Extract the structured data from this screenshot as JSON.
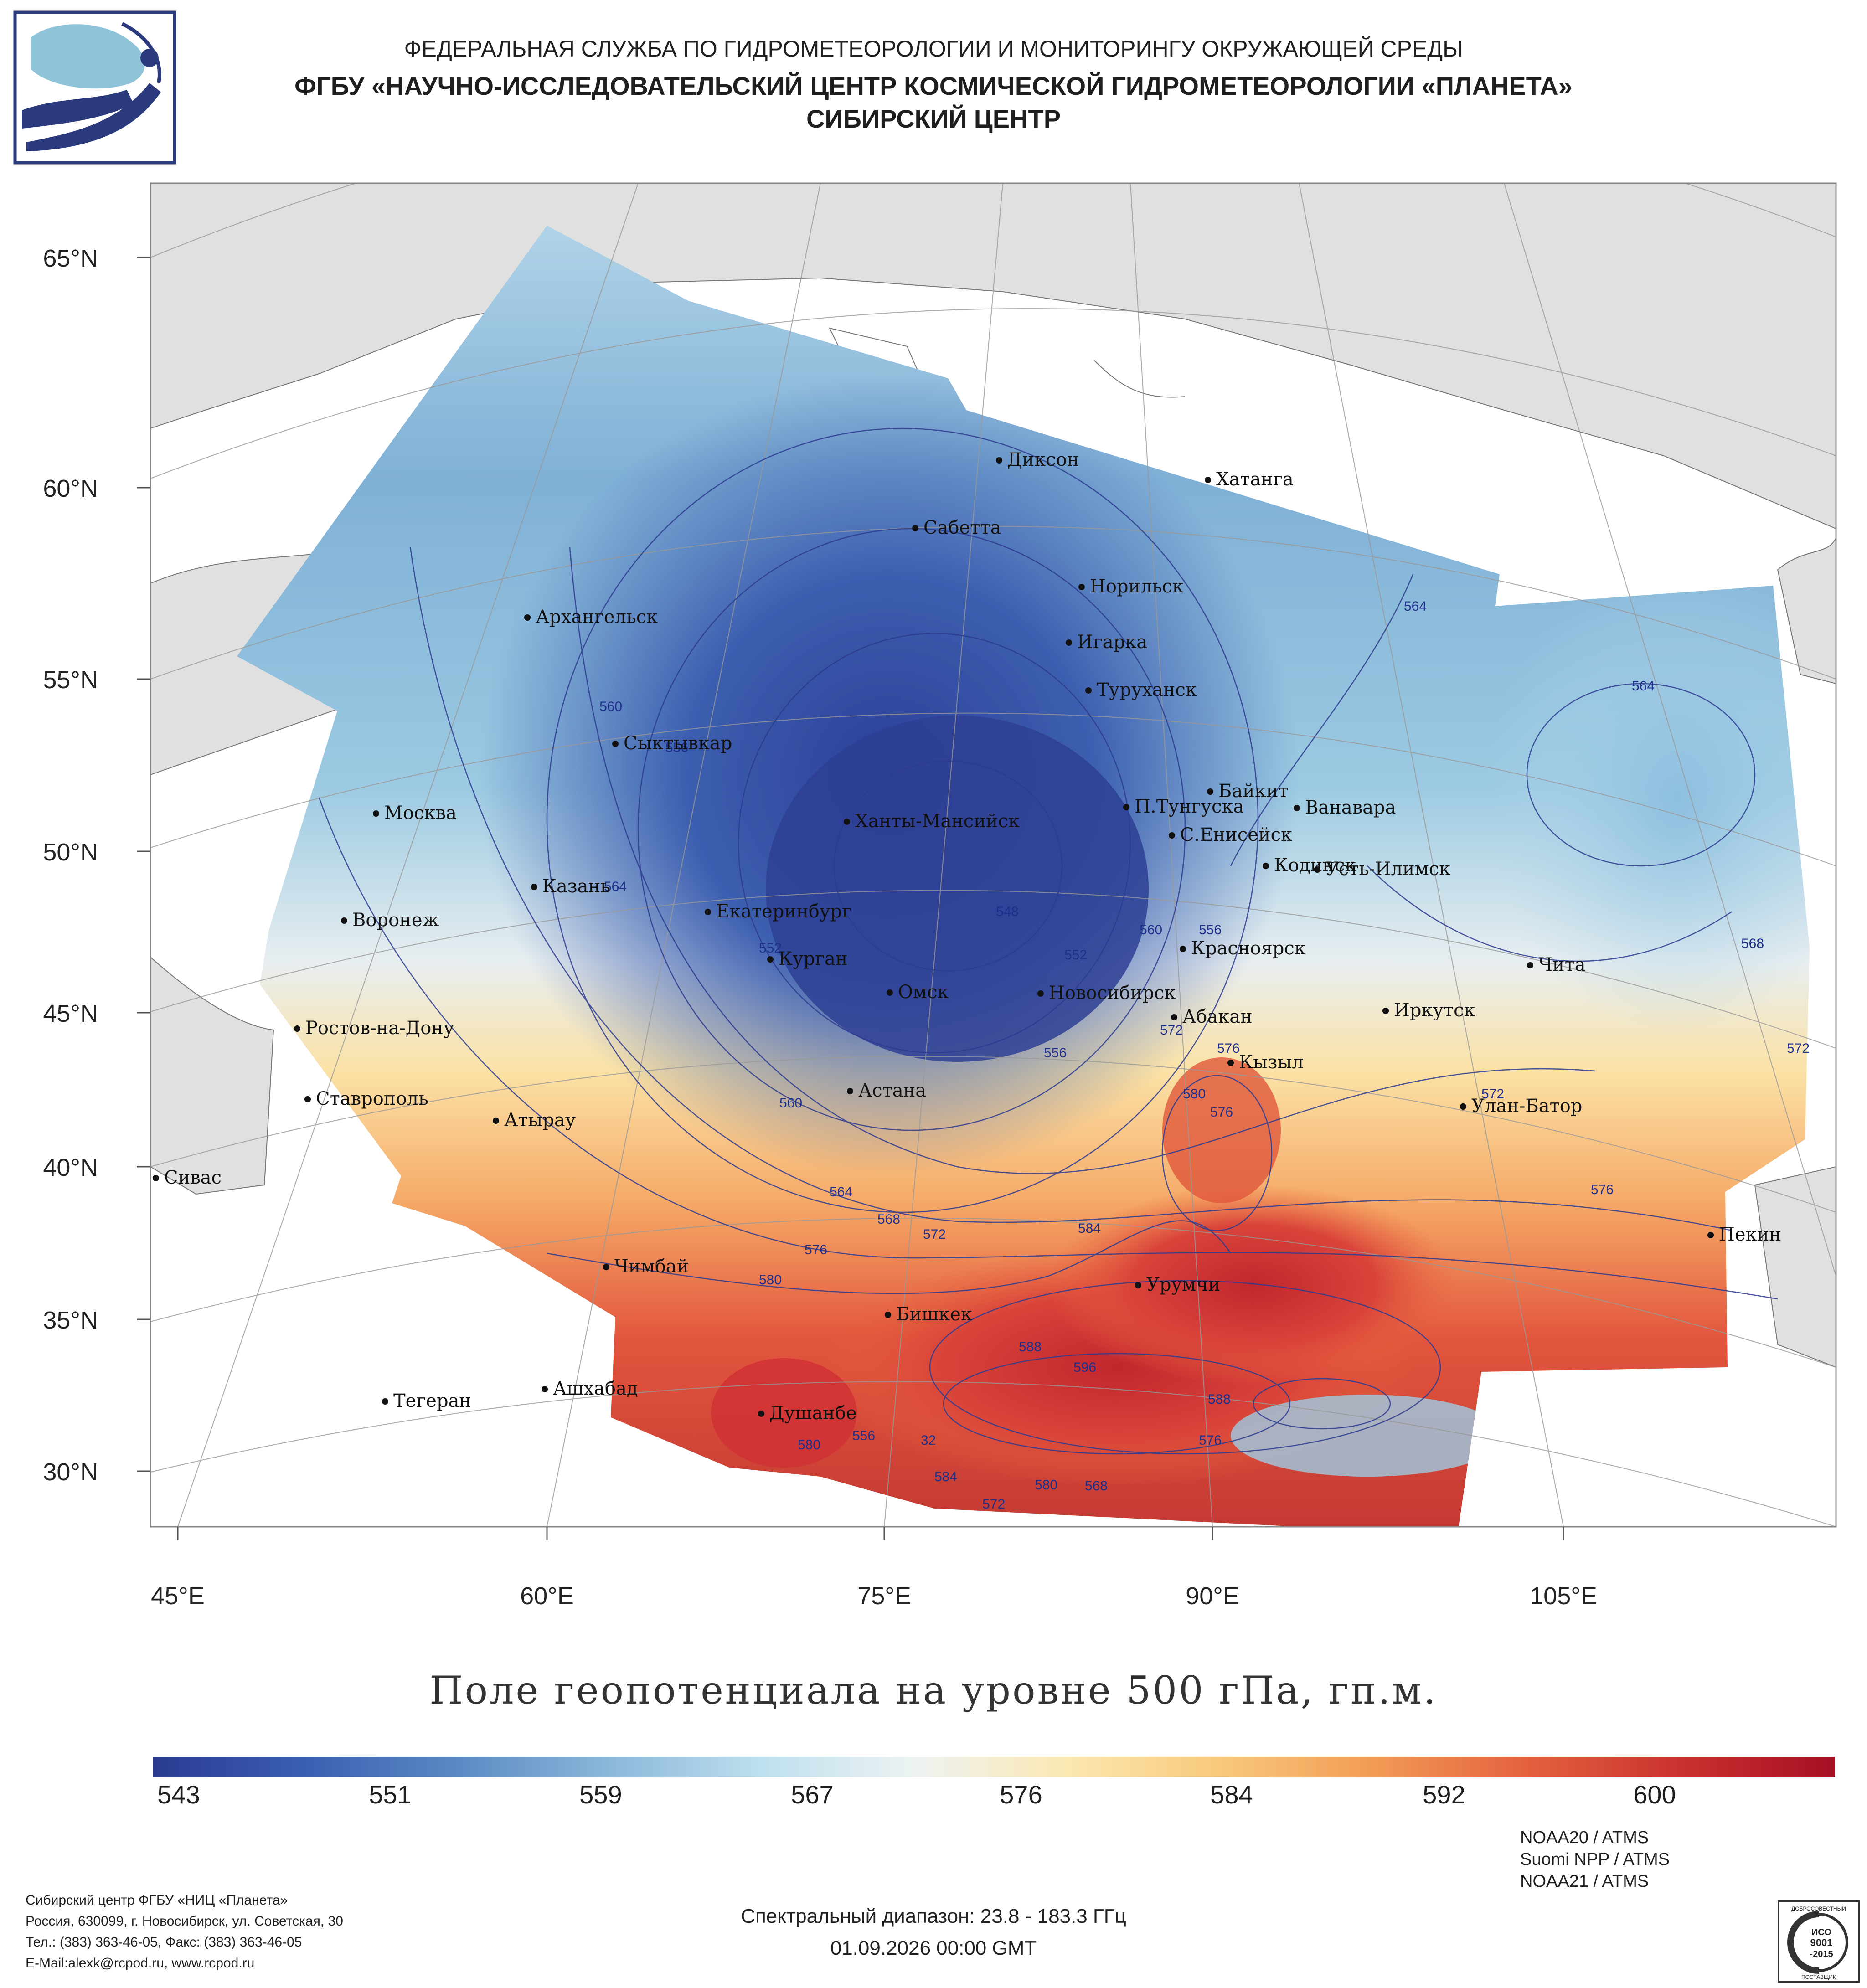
{
  "header": {
    "agency": "ФЕДЕРАЛЬНАЯ СЛУЖБА ПО ГИДРОМЕТЕОРОЛОГИИ И МОНИТОРИНГУ ОКРУЖАЮЩЕЙ СРЕДЫ",
    "institute": "ФГБУ «НАУЧНО-ИССЛЕДОВАТЕЛЬСКИЙ ЦЕНТР КОСМИЧЕСКОЙ ГИДРОМЕТЕОРОЛОГИИ «ПЛАНЕТА»",
    "center": "СИБИРСКИЙ ЦЕНТР"
  },
  "map": {
    "title": "Поле геопотенциала на уровне 500 гПа, гп.м.",
    "lat_labels": [
      "65°N",
      "60°N",
      "55°N",
      "50°N",
      "45°N",
      "40°N",
      "35°N",
      "30°N"
    ],
    "lon_labels": [
      "45°E",
      "60°E",
      "75°E",
      "90°E",
      "105°E"
    ],
    "cities": [
      {
        "name": "Диксон"
      },
      {
        "name": "Хатанга"
      },
      {
        "name": "Сабетта"
      },
      {
        "name": "Норильск"
      },
      {
        "name": "Архангельск"
      },
      {
        "name": "Игарка"
      },
      {
        "name": "Туруханск"
      },
      {
        "name": "Сыктывкар"
      },
      {
        "name": "Байкит"
      },
      {
        "name": "Москва"
      },
      {
        "name": "П.Тунгуска"
      },
      {
        "name": "Ванавара"
      },
      {
        "name": "Ханты-Мансийск"
      },
      {
        "name": "С.Енисейск"
      },
      {
        "name": "Кодинск"
      },
      {
        "name": "Усть-Илимск"
      },
      {
        "name": "Казань"
      },
      {
        "name": "Екатеринбург"
      },
      {
        "name": "Воронеж"
      },
      {
        "name": "Красноярск"
      },
      {
        "name": "Курган"
      },
      {
        "name": "Чита"
      },
      {
        "name": "Омск"
      },
      {
        "name": "Новосибирск"
      },
      {
        "name": "Иркутск"
      },
      {
        "name": "Ростов-на-Дону"
      },
      {
        "name": "Абакан"
      },
      {
        "name": "Кызыл"
      },
      {
        "name": "Астана"
      },
      {
        "name": "Ставрополь"
      },
      {
        "name": "Улан-Батор"
      },
      {
        "name": "Атырау"
      },
      {
        "name": "Сивас"
      },
      {
        "name": "Пекин"
      },
      {
        "name": "Чимбай"
      },
      {
        "name": "Урумчи"
      },
      {
        "name": "Бишкек"
      },
      {
        "name": "Ашхабад"
      },
      {
        "name": "Тегеран"
      },
      {
        "name": "Душанбе"
      }
    ],
    "contour_labels": [
      "560",
      "556",
      "564",
      "552",
      "548",
      "556",
      "560",
      "564",
      "568",
      "572",
      "576",
      "580",
      "584",
      "588",
      "596",
      "580",
      "572",
      "576",
      "580",
      "584",
      "588",
      "576",
      "572",
      "568",
      "576",
      "580",
      "564",
      "564",
      "568",
      "572",
      "572",
      "576",
      "560",
      "552",
      "556",
      "556",
      "32"
    ]
  },
  "colorbar": {
    "labels": [
      "543",
      "551",
      "559",
      "567",
      "576",
      "584",
      "592",
      "600"
    ],
    "colors": [
      "#2b3a91",
      "#3a5fb2",
      "#5a8ac4",
      "#8cb8da",
      "#bfe0ef",
      "#eef3f2",
      "#fbe7b0",
      "#f8c879",
      "#f29a55",
      "#e3603e",
      "#c9312f",
      "#a50f24"
    ]
  },
  "footer": {
    "org_lines": [
      "Сибирский центр ФГБУ «НИЦ «Планета»",
      "Россия, 630099, г. Новосибирск, ул. Советская, 30",
      "Тел.: (383) 363-46-05, Факс: (383) 363-46-05",
      "E-Mail:alexk@rcpod.ru, www.rcpod.ru"
    ],
    "spectral": "Спектральный диапазон: 23.8 - 183.3 ГГц",
    "datetime": "01.09.2026 00:00 GMT",
    "instruments": [
      "NOAA20 / ATMS",
      "Suomi NPP / ATMS",
      "NOAA21 / ATMS"
    ],
    "iso_badge": {
      "top": "ДОБРОСОВЕСТНЫЙ",
      "mark": "ИСО",
      "num": "9001",
      "year": "-2015",
      "bottom": "ПОСТАВЩИК"
    }
  }
}
